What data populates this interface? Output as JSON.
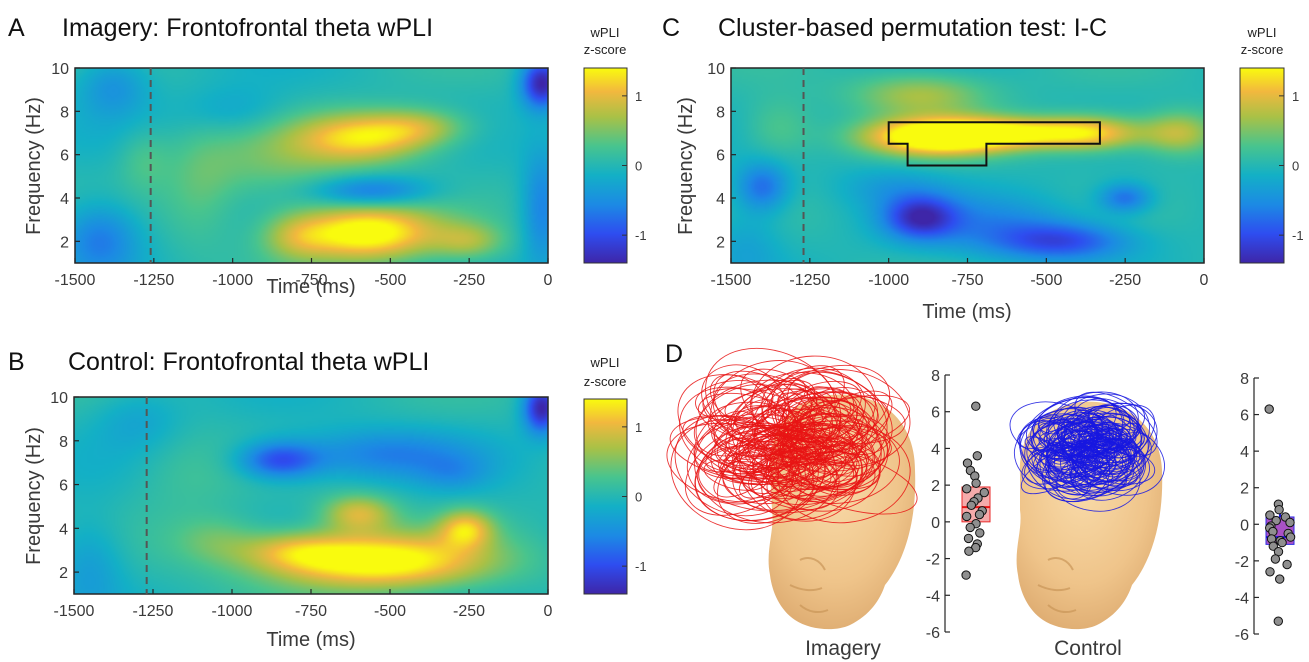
{
  "chart_data": [
    {
      "type": "heatmap",
      "letter": "A",
      "title": "Imagery: Frontofrontal theta wPLI",
      "xlabel": "Time (ms)",
      "ylabel": "Frequency (Hz)",
      "xlim": [
        -1500,
        0
      ],
      "ylim": [
        1,
        10
      ],
      "xticks": [
        "-1500",
        "-1250",
        "-1000",
        "-750",
        "-500",
        "-250",
        "0"
      ],
      "yticks": [
        "2",
        "4",
        "6",
        "8",
        "10"
      ],
      "dashed_line_x": -1260,
      "colorbar": {
        "label_line1": "wPLI",
        "label_line2": "z-score",
        "ticks": [
          "1",
          "0",
          "-1"
        ],
        "clim": [
          -1.4,
          1.4
        ]
      },
      "blobs": [
        {
          "t": -580,
          "f": 2.4,
          "st": 160,
          "sf": 0.9,
          "a": 1.6
        },
        {
          "t": -800,
          "f": 2.2,
          "st": 80,
          "sf": 0.8,
          "a": 0.5
        },
        {
          "t": -580,
          "f": 6.8,
          "st": 150,
          "sf": 0.8,
          "a": 1.2
        },
        {
          "t": -400,
          "f": 7.3,
          "st": 110,
          "sf": 0.6,
          "a": 0.6
        },
        {
          "t": -850,
          "f": 5.5,
          "st": 180,
          "sf": 1.3,
          "a": 0.4
        },
        {
          "t": -1100,
          "f": 4.5,
          "st": 80,
          "sf": 2.0,
          "a": 0.3
        },
        {
          "t": -560,
          "f": 4.3,
          "st": 130,
          "sf": 0.5,
          "a": -0.8
        },
        {
          "t": -1420,
          "f": 2.2,
          "st": 90,
          "sf": 1.2,
          "a": -0.7
        },
        {
          "t": -1380,
          "f": 9.2,
          "st": 80,
          "sf": 1.0,
          "a": -0.5
        },
        {
          "t": -20,
          "f": 9.3,
          "st": 45,
          "sf": 0.8,
          "a": -1.4
        },
        {
          "t": -20,
          "f": 3.5,
          "st": 45,
          "sf": 2.0,
          "a": -0.6
        },
        {
          "t": -1000,
          "f": 8.0,
          "st": 120,
          "sf": 0.8,
          "a": -0.3
        },
        {
          "t": -1280,
          "f": 5.8,
          "st": 60,
          "sf": 1.0,
          "a": 0.3
        },
        {
          "t": -250,
          "f": 2.0,
          "st": 80,
          "sf": 0.6,
          "a": 0.6
        }
      ]
    },
    {
      "type": "heatmap",
      "letter": "B",
      "title": "Control: Frontofrontal theta wPLI",
      "xlabel": "Time (ms)",
      "ylabel": "Frequency (Hz)",
      "xlim": [
        -1500,
        0
      ],
      "ylim": [
        1,
        10
      ],
      "xticks": [
        "-1500",
        "-1250",
        "-1000",
        "-750",
        "-500",
        "-250",
        "0"
      ],
      "yticks": [
        "2",
        "4",
        "6",
        "8",
        "10"
      ],
      "dashed_line_x": -1270,
      "colorbar": {
        "label_line1": "wPLI",
        "label_line2": "z-score",
        "ticks": [
          "1",
          "0",
          "-1"
        ],
        "clim": [
          -1.4,
          1.4
        ]
      },
      "blobs": [
        {
          "t": -550,
          "f": 2.5,
          "st": 250,
          "sf": 0.9,
          "a": 1.6
        },
        {
          "t": -800,
          "f": 3.0,
          "st": 120,
          "sf": 0.6,
          "a": 0.6
        },
        {
          "t": -600,
          "f": 4.7,
          "st": 80,
          "sf": 0.6,
          "a": 0.9
        },
        {
          "t": -260,
          "f": 4.0,
          "st": 60,
          "sf": 0.6,
          "a": 1.0
        },
        {
          "t": -1050,
          "f": 3.5,
          "st": 100,
          "sf": 0.8,
          "a": 0.4
        },
        {
          "t": -850,
          "f": 7.1,
          "st": 90,
          "sf": 0.6,
          "a": -1.0
        },
        {
          "t": -530,
          "f": 7.4,
          "st": 200,
          "sf": 0.8,
          "a": -0.6
        },
        {
          "t": -20,
          "f": 9.5,
          "st": 40,
          "sf": 0.8,
          "a": -1.4
        },
        {
          "t": -1450,
          "f": 2.5,
          "st": 80,
          "sf": 1.5,
          "a": -0.4
        },
        {
          "t": -1300,
          "f": 9.0,
          "st": 100,
          "sf": 1.0,
          "a": -0.3
        },
        {
          "t": -300,
          "f": 6.5,
          "st": 80,
          "sf": 0.6,
          "a": -0.3
        },
        {
          "t": -1150,
          "f": 6.5,
          "st": 120,
          "sf": 1.5,
          "a": 0.2
        }
      ]
    },
    {
      "type": "heatmap",
      "letter": "C",
      "title": "Cluster-based permutation test: I-C",
      "xlabel": "Time (ms)",
      "ylabel": "Frequency (Hz)",
      "xlim": [
        -1500,
        0
      ],
      "ylim": [
        1,
        10
      ],
      "xticks": [
        "-1500",
        "-1250",
        "-1000",
        "-750",
        "-500",
        "-250",
        "0"
      ],
      "yticks": [
        "2",
        "4",
        "6",
        "8",
        "10"
      ],
      "dashed_line_x": -1270,
      "colorbar": {
        "label_line1": "wPLI",
        "label_line2": "z-score",
        "ticks": [
          "1",
          "0",
          "-1"
        ],
        "clim": [
          -1.4,
          1.4
        ]
      },
      "cluster_outline": [
        [
          -1000,
          7.5
        ],
        [
          -330,
          7.5
        ],
        [
          -330,
          6.5
        ],
        [
          -690,
          6.5
        ],
        [
          -690,
          5.5
        ],
        [
          -940,
          5.5
        ],
        [
          -940,
          6.5
        ],
        [
          -1000,
          6.5
        ]
      ],
      "blobs": [
        {
          "t": -850,
          "f": 6.8,
          "st": 160,
          "sf": 0.6,
          "a": 1.6
        },
        {
          "t": -600,
          "f": 7.0,
          "st": 200,
          "sf": 0.5,
          "a": 1.2
        },
        {
          "t": -350,
          "f": 7.0,
          "st": 120,
          "sf": 0.6,
          "a": 0.9
        },
        {
          "t": -80,
          "f": 7.0,
          "st": 80,
          "sf": 0.7,
          "a": 0.8
        },
        {
          "t": -900,
          "f": 8.8,
          "st": 150,
          "sf": 0.7,
          "a": 0.7
        },
        {
          "t": -900,
          "f": 3.1,
          "st": 80,
          "sf": 0.7,
          "a": -1.1
        },
        {
          "t": -450,
          "f": 2.0,
          "st": 150,
          "sf": 0.6,
          "a": -0.9
        },
        {
          "t": -650,
          "f": 2.8,
          "st": 200,
          "sf": 1.0,
          "a": -0.5
        },
        {
          "t": -1000,
          "f": 4.5,
          "st": 120,
          "sf": 0.7,
          "a": -0.3
        },
        {
          "t": -1400,
          "f": 4.5,
          "st": 60,
          "sf": 0.8,
          "a": -0.8
        },
        {
          "t": -1350,
          "f": 7.2,
          "st": 80,
          "sf": 1.0,
          "a": 0.4
        },
        {
          "t": -1450,
          "f": 2.0,
          "st": 80,
          "sf": 1.2,
          "a": -0.3
        },
        {
          "t": -250,
          "f": 4.0,
          "st": 60,
          "sf": 0.5,
          "a": -0.8
        }
      ]
    },
    {
      "type": "scatter",
      "letter": "D",
      "series": [
        {
          "name": "Imagery",
          "color": "#e81414",
          "box_fill": "#f4a3a3",
          "ylim": [
            -6,
            8
          ],
          "yticks": [
            "8",
            "6",
            "4",
            "2",
            "0",
            "-2",
            "-4",
            "-6"
          ],
          "box": {
            "q1": 0.0,
            "median": 0.8,
            "q3": 1.9,
            "mean": 0.8
          },
          "points": [
            6.3,
            3.6,
            3.2,
            2.8,
            2.5,
            2.1,
            1.8,
            1.6,
            1.3,
            1.1,
            0.9,
            0.6,
            0.4,
            0.3,
            -0.1,
            -0.3,
            -0.6,
            -0.9,
            -1.2,
            -1.4,
            -1.6,
            -2.9
          ]
        },
        {
          "name": "Control",
          "color": "#1818e0",
          "box_fill": "#a040c0",
          "ylim": [
            -6,
            8
          ],
          "yticks": [
            "8",
            "6",
            "4",
            "2",
            "0",
            "-2",
            "-4",
            "-6"
          ],
          "box": {
            "q1": -1.1,
            "median": -0.7,
            "q3": 0.4,
            "mean": -0.7
          },
          "points": [
            6.3,
            1.1,
            0.8,
            0.5,
            0.4,
            0.2,
            0.1,
            -0.1,
            -0.2,
            -0.4,
            -0.5,
            -0.7,
            -0.8,
            -0.9,
            -1.0,
            -1.2,
            -1.5,
            -1.9,
            -2.2,
            -2.6,
            -3.0,
            -5.3
          ]
        }
      ]
    }
  ]
}
